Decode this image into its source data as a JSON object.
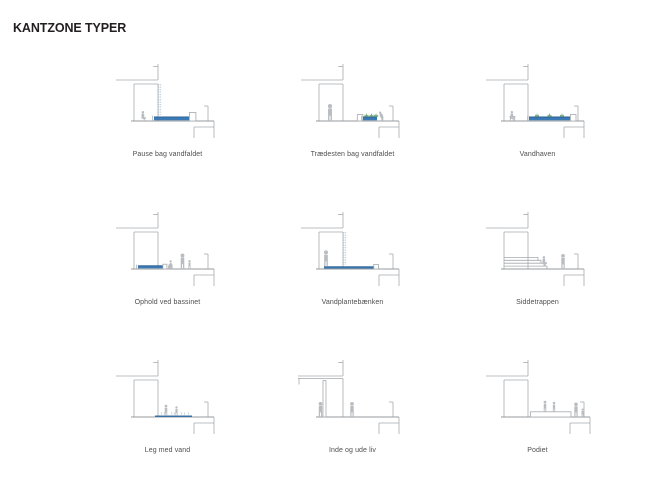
{
  "page": {
    "title": "KANTZONE TYPER"
  },
  "colors": {
    "title_color": "#231f20",
    "caption_color": "#4f4f4f",
    "line_gray": "#a5aaae",
    "ground_gray": "#94999d",
    "figure_gray": "#b9bdc1",
    "water_blue": "#3c7ab5",
    "water_edge": "#2a5f95",
    "plant_green": "#74a87c",
    "waterfall_dash": "#bfcdd6"
  },
  "diagrams": [
    {
      "id": "pause-bag-vandfaldet",
      "caption": "Pause bag vandfaldet"
    },
    {
      "id": "traedesten-bag-vandfaldet",
      "caption": "Trædesten bag vandfaldet"
    },
    {
      "id": "vandhaven",
      "caption": "Vandhaven"
    },
    {
      "id": "ophold-ved-bassinet",
      "caption": "Ophold ved bassinet"
    },
    {
      "id": "vandplantebaenken",
      "caption": "Vandplantebænken"
    },
    {
      "id": "siddetrappen",
      "caption": "Siddetrappen"
    },
    {
      "id": "leg-med-vand",
      "caption": "Leg med vand"
    },
    {
      "id": "inde-og-ude-liv",
      "caption": "Inde og ude liv"
    },
    {
      "id": "podiet",
      "caption": "Podiet"
    }
  ]
}
